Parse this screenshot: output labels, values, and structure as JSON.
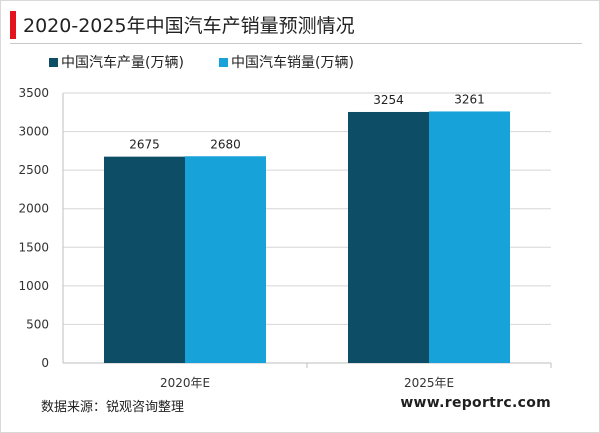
{
  "header": {
    "title": "2020-2025年中国汽车产销量预测情况"
  },
  "footer": {
    "source": "数据来源：锐观咨询整理",
    "site": "www.reportrc.com"
  },
  "colors": {
    "accent": "#e3141e",
    "series_production": "#0e4d66",
    "series_sales": "#17a3d9"
  },
  "chart_data": {
    "type": "bar",
    "title": "",
    "xlabel": "",
    "ylabel": "",
    "categories": [
      "2020年E",
      "2025年E"
    ],
    "series": [
      {
        "name": "中国汽车产量(万辆)",
        "values": [
          2675,
          3254
        ]
      },
      {
        "name": "中国汽车销量(万辆)",
        "values": [
          2680,
          3261
        ]
      }
    ],
    "ylim": [
      0,
      3500
    ],
    "yticks": [
      0,
      500,
      1000,
      1500,
      2000,
      2500,
      3000,
      3500
    ],
    "grid": true,
    "legend": "top-left"
  }
}
